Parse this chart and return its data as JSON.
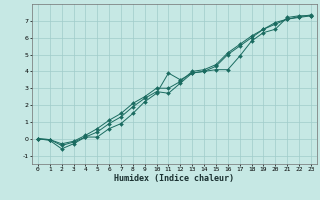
{
  "xlabel": "Humidex (Indice chaleur)",
  "ylabel": "",
  "background_color": "#c6e8e4",
  "grid_color": "#a0ccca",
  "line_color": "#1a6b60",
  "xlim": [
    -0.5,
    23.5
  ],
  "ylim": [
    -1.5,
    8.0
  ],
  "yticks": [
    -1,
    0,
    1,
    2,
    3,
    4,
    5,
    6,
    7
  ],
  "xticks": [
    0,
    1,
    2,
    3,
    4,
    5,
    6,
    7,
    8,
    9,
    10,
    11,
    12,
    13,
    14,
    15,
    16,
    17,
    18,
    19,
    20,
    21,
    22,
    23
  ],
  "line1_x": [
    0,
    1,
    2,
    3,
    4,
    5,
    6,
    7,
    8,
    9,
    10,
    11,
    12,
    13,
    14,
    15,
    16,
    17,
    18,
    19,
    20,
    21,
    22,
    23
  ],
  "line1_y": [
    0.0,
    -0.1,
    -0.6,
    -0.3,
    0.1,
    0.1,
    0.6,
    0.9,
    1.5,
    2.2,
    2.7,
    3.9,
    3.5,
    3.9,
    4.0,
    4.1,
    4.1,
    4.9,
    5.8,
    6.3,
    6.5,
    7.2,
    7.3,
    7.3
  ],
  "line2_x": [
    0,
    1,
    2,
    3,
    4,
    5,
    6,
    7,
    8,
    9,
    10,
    11,
    12,
    13,
    14,
    15,
    16,
    17,
    18,
    19,
    20,
    21,
    22,
    23
  ],
  "line2_y": [
    0.0,
    -0.05,
    -0.4,
    -0.2,
    0.1,
    0.4,
    0.9,
    1.3,
    1.9,
    2.4,
    2.8,
    2.7,
    3.3,
    3.9,
    4.0,
    4.3,
    5.0,
    5.5,
    6.0,
    6.5,
    6.8,
    7.1,
    7.2,
    7.3
  ],
  "line3_x": [
    0,
    1,
    2,
    3,
    4,
    5,
    6,
    7,
    8,
    9,
    10,
    11,
    12,
    13,
    14,
    15,
    16,
    17,
    18,
    19,
    20,
    21,
    22,
    23
  ],
  "line3_y": [
    0.0,
    -0.05,
    -0.3,
    -0.15,
    0.2,
    0.6,
    1.1,
    1.5,
    2.1,
    2.5,
    3.0,
    3.0,
    3.4,
    4.0,
    4.1,
    4.4,
    5.1,
    5.6,
    6.1,
    6.5,
    6.9,
    7.1,
    7.25,
    7.35
  ],
  "tick_fontsize": 4.5,
  "xlabel_fontsize": 6.0,
  "marker_size": 2.0,
  "linewidth": 0.7
}
